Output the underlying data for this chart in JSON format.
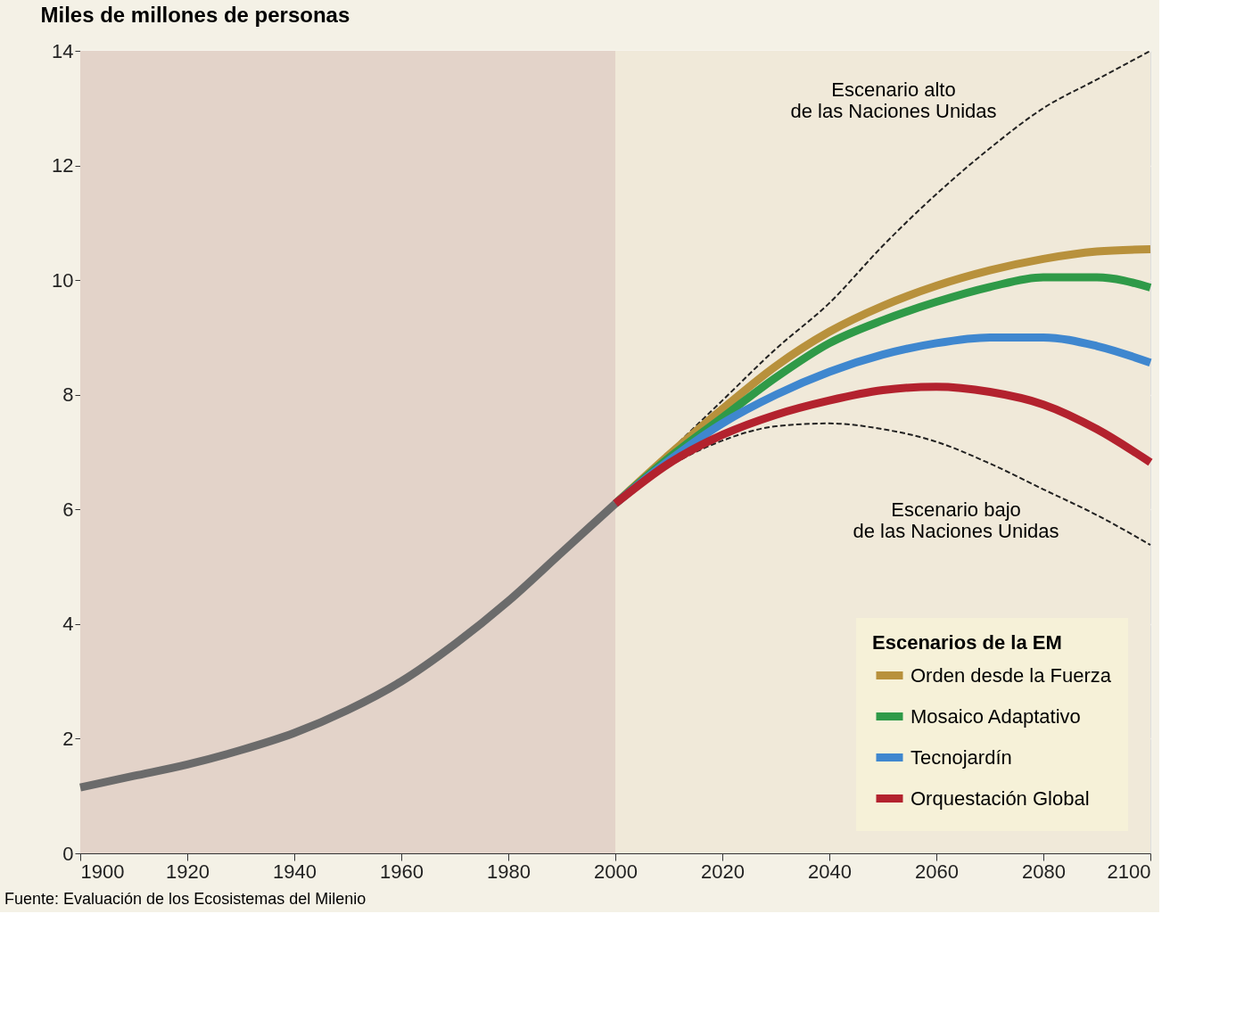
{
  "chart_data": {
    "type": "line",
    "ylabel": "Miles de millones de personas",
    "xlim": [
      1900,
      2100
    ],
    "xticks": [
      1900,
      1920,
      1940,
      1960,
      1980,
      2000,
      2020,
      2040,
      2060,
      2080,
      2100
    ],
    "ylim": [
      0,
      14
    ],
    "yticks": [
      0,
      2,
      4,
      6,
      8,
      10,
      12,
      14
    ],
    "grid": "y",
    "legend": "bottom right",
    "legend_title": "Escenarios de la EM",
    "bands": [
      {
        "axis": "x",
        "from": 1900,
        "to": 2000,
        "label": null,
        "color": "#e3d3c9"
      },
      {
        "axis": "x",
        "from": 2000,
        "to": 2100,
        "label": null,
        "color": "#f0e9d9"
      }
    ],
    "series": [
      {
        "color": "#6b6b6b",
        "x": [
          1900,
          1910,
          1920,
          1930,
          1940,
          1950,
          1960,
          1970,
          1980,
          1990,
          2000
        ],
        "values": [
          1.15,
          1.35,
          1.55,
          1.8,
          2.1,
          2.5,
          3.0,
          3.65,
          4.4,
          5.25,
          6.1
        ]
      },
      {
        "color": "#222222",
        "line_style": "dashed",
        "x": [
          2000,
          2010,
          2020,
          2030,
          2040,
          2050,
          2060,
          2070,
          2080,
          2090,
          2100
        ],
        "values": [
          6.1,
          7.0,
          7.9,
          8.8,
          9.6,
          10.6,
          11.5,
          12.3,
          13.0,
          13.5,
          14.0
        ]
      },
      {
        "color": "#222222",
        "line_style": "dashed",
        "x": [
          2000,
          2010,
          2020,
          2030,
          2040,
          2050,
          2060,
          2070,
          2080,
          2090,
          2100
        ],
        "values": [
          6.1,
          6.75,
          7.2,
          7.45,
          7.5,
          7.4,
          7.18,
          6.8,
          6.35,
          5.9,
          5.38
        ]
      },
      {
        "name": "Orden desde la Fuerza",
        "color": "#b8913c",
        "x": [
          2000,
          2010,
          2020,
          2030,
          2040,
          2050,
          2060,
          2070,
          2080,
          2090,
          2100
        ],
        "values": [
          6.1,
          6.95,
          7.75,
          8.5,
          9.1,
          9.55,
          9.9,
          10.17,
          10.37,
          10.5,
          10.54
        ]
      },
      {
        "name": "Mosaico Adaptativo",
        "color": "#2f9a48",
        "x": [
          2000,
          2010,
          2020,
          2030,
          2040,
          2050,
          2060,
          2070,
          2080,
          2090,
          2100
        ],
        "values": [
          6.1,
          6.9,
          7.6,
          8.3,
          8.9,
          9.3,
          9.62,
          9.88,
          10.05,
          10.05,
          9.87
        ]
      },
      {
        "name": "Tecnojardín",
        "color": "#3f87cf",
        "x": [
          2000,
          2010,
          2020,
          2030,
          2040,
          2050,
          2060,
          2070,
          2080,
          2090,
          2100
        ],
        "values": [
          6.1,
          6.85,
          7.5,
          8.0,
          8.4,
          8.7,
          8.9,
          9.0,
          9.0,
          8.85,
          8.56
        ]
      },
      {
        "name": "Orquestación Global",
        "color": "#b3222e",
        "x": [
          2000,
          2010,
          2020,
          2030,
          2040,
          2050,
          2060,
          2070,
          2080,
          2090,
          2100
        ],
        "values": [
          6.1,
          6.8,
          7.3,
          7.65,
          7.9,
          8.08,
          8.14,
          8.05,
          7.83,
          7.4,
          6.82
        ]
      }
    ],
    "annotations": [
      {
        "text": "Escenario alto\nde las Naciones Unidas",
        "x": 2062,
        "y": 11.8
      },
      {
        "text": "Escenario bajo\nde las Naciones Unidas",
        "x": 2062,
        "y": 7.15
      },
      "Fuente: Evaluación de los Ecosistemas del Milenio"
    ]
  }
}
